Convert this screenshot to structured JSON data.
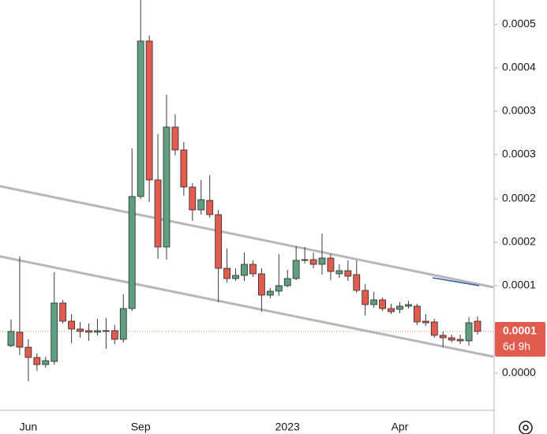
{
  "chart_data": {
    "type": "candlestick",
    "categories": [
      null,
      null,
      "Jun",
      null,
      null,
      null,
      null,
      null,
      null,
      null,
      null,
      null,
      null,
      null,
      null,
      "Sep",
      null,
      null,
      null,
      null,
      null,
      null,
      null,
      null,
      null,
      null,
      null,
      null,
      null,
      null,
      null,
      null,
      "2023",
      null,
      null,
      null,
      null,
      null,
      null,
      null,
      null,
      null,
      null,
      null,
      null,
      "Apr",
      null,
      null,
      null,
      null,
      null,
      null,
      null,
      null,
      null
    ],
    "open": [
      5e-05,
      6.7e-05,
      4.8e-05,
      3.5e-05,
      2.6e-05,
      3e-05,
      0.000104,
      8.1e-05,
      7.1e-05,
      6.9e-05,
      6.7e-05,
      6.8e-05,
      6.9e-05,
      5.8e-05,
      9.7e-05,
      0.000239,
      0.000436,
      0.00026,
      0.000175,
      0.000327,
      0.000298,
      0.000251,
      0.000222,
      0.000234,
      0.000216,
      0.000148,
      0.000135,
      0.000139,
      0.000153,
      0.000141,
      0.000114,
      0.000119,
      0.000126,
      0.000135,
      0.000158,
      0.000159,
      0.000153,
      0.000161,
      0.000141,
      0.000145,
      0.00014,
      0.00012,
      0.000102,
      0.000108,
      9.7e-05,
      9.6e-05,
      0.0001,
      0.0001,
      8.1e-05,
      8e-05,
      6.3e-05,
      6e-05,
      5.8e-05,
      5.6e-05,
      8.1e-05
    ],
    "high": [
      8.3e-05,
      0.000163,
      5.8e-05,
      4e-05,
      3.6e-05,
      0.000143,
      0.000108,
      9e-05,
      8e-05,
      7.8e-05,
      8.4e-05,
      8.5e-05,
      7.6e-05,
      0.000115,
      0.0003,
      0.000488,
      0.000443,
      0.000318,
      0.000368,
      0.000343,
      0.000308,
      0.000256,
      0.00026,
      0.000266,
      0.000222,
      0.000173,
      0.000148,
      0.000168,
      0.000158,
      0.000148,
      0.000123,
      0.000166,
      0.000146,
      0.000176,
      0.000175,
      0.000168,
      0.000192,
      0.000166,
      0.000153,
      0.000158,
      0.000158,
      0.000128,
      0.000118,
      0.000111,
      0.000103,
      0.000105,
      0.000107,
      0.000103,
      9e-05,
      8.4e-05,
      6.8e-05,
      6.4e-05,
      6.4e-05,
      8.6e-05,
      8.7e-05
    ],
    "low": [
      4.8e-05,
      3.8e-05,
      5e-06,
      1.8e-05,
      2.2e-05,
      2.6e-05,
      7.8e-05,
      5.3e-05,
      6e-05,
      5.6e-05,
      6.3e-05,
      4.6e-05,
      5.2e-05,
      5.4e-05,
      9.4e-05,
      0.000236,
      0.000232,
      0.00016,
      0.000159,
      0.000291,
      0.00024,
      0.000208,
      0.000216,
      0.000212,
      0.000105,
      0.00013,
      0.000132,
      0.000132,
      0.000137,
      9.3e-05,
      0.00011,
      0.000113,
      0.000124,
      0.000133,
      0.000154,
      0.000148,
      0.00014,
      0.000133,
      0.000136,
      0.000132,
      0.000117,
      8.8e-05,
      9.8e-05,
      9.4e-05,
      9e-05,
      9.1e-05,
      9.7e-05,
      7.6e-05,
      7.5e-05,
      6e-05,
      4.8e-05,
      5.4e-05,
      5.2e-05,
      5e-05,
      6.4e-05
    ],
    "close": [
      6.8e-05,
      4.8e-05,
      3.5e-05,
      2.6e-05,
      3.1e-05,
      0.000104,
      8.1e-05,
      7.1e-05,
      6.8e-05,
      6.7e-05,
      6.9e-05,
      6.9e-05,
      5.8e-05,
      9.7e-05,
      0.000239,
      0.000436,
      0.00026,
      0.000175,
      0.000327,
      0.000298,
      0.000251,
      0.000222,
      0.000235,
      0.000216,
      0.000148,
      0.000135,
      0.000139,
      0.000153,
      0.000141,
      0.000114,
      0.000119,
      0.000126,
      0.000135,
      0.000158,
      0.000159,
      0.000153,
      0.000161,
      0.000144,
      0.000145,
      0.000138,
      0.00012,
      0.000102,
      0.000108,
      9.7e-05,
      9.3e-05,
      0.0001,
      0.000102,
      8e-05,
      7.9e-05,
      6.3e-05,
      6e-05,
      5.7e-05,
      5.6e-05,
      7.9e-05,
      6.8e-05
    ],
    "up_color": "#5f9e7f",
    "down_color": "#e15b4f",
    "ylim": [
      -3.2e-05,
      0.000488
    ],
    "yticks": [
      {
        "value": 1.5e-05,
        "label": "0.0000"
      },
      {
        "value": 0.000126,
        "label": "0.0001"
      },
      {
        "value": 0.000181,
        "label": "0.0002"
      },
      {
        "value": 0.000236,
        "label": "0.0002"
      },
      {
        "value": 0.000292,
        "label": "0.0003"
      },
      {
        "value": 0.000347,
        "label": "0.0003"
      },
      {
        "value": 0.000402,
        "label": "0.0004"
      },
      {
        "value": 0.000457,
        "label": "0.0005"
      }
    ],
    "last_price": {
      "value": 6.8e-05,
      "label": "0.0001"
    },
    "countdown": "6d 9h"
  }
}
